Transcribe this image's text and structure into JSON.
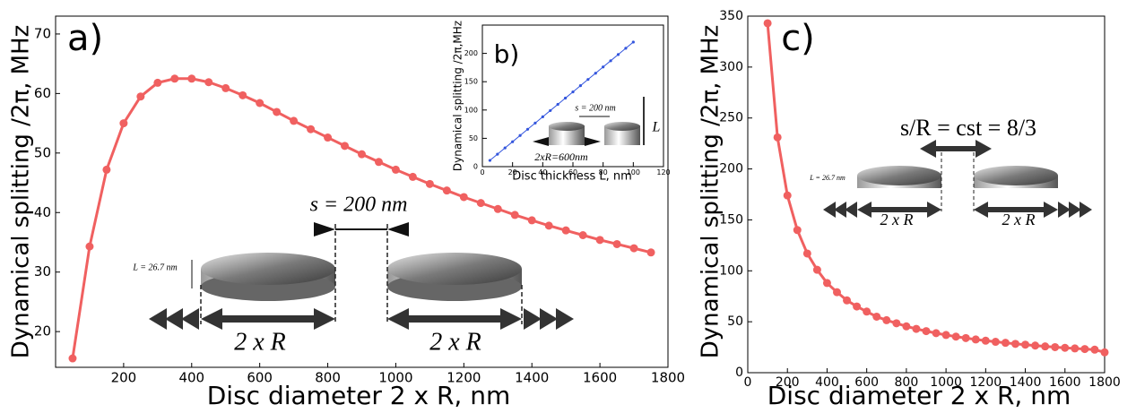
{
  "chart_data": [
    {
      "type": "line",
      "label": "a)",
      "xlabel": "Disc diameter 2 x R, nm",
      "ylabel": "Dynamical splitting /2π, MHz",
      "x": [
        50,
        100,
        150,
        200,
        250,
        300,
        350,
        400,
        450,
        500,
        550,
        600,
        650,
        700,
        750,
        800,
        850,
        900,
        950,
        1000,
        1050,
        1100,
        1150,
        1200,
        1250,
        1300,
        1350,
        1400,
        1450,
        1500,
        1550,
        1600,
        1650,
        1700,
        1750
      ],
      "values": [
        15.5,
        34.3,
        47.2,
        55,
        59.5,
        61.8,
        62.5,
        62.5,
        61.9,
        60.9,
        59.7,
        58.4,
        56.9,
        55.4,
        54,
        52.6,
        51.2,
        49.8,
        48.5,
        47.2,
        46,
        44.8,
        43.7,
        42.6,
        41.6,
        40.6,
        39.6,
        38.7,
        37.8,
        37,
        36.2,
        35.4,
        34.7,
        34,
        33.3
      ],
      "color": "#f06060",
      "xlim": [
        0,
        1800
      ],
      "xticks": [
        200,
        400,
        600,
        800,
        1000,
        1200,
        1400,
        1600,
        1800
      ],
      "ylim": [
        14,
        73
      ],
      "yticks": [
        20,
        30,
        40,
        50,
        60,
        70
      ],
      "annotations": [
        "s = 200 nm",
        "L = 26.7 nm",
        "2 x R",
        "2 x R"
      ]
    },
    {
      "type": "line",
      "label": "b)",
      "xlabel": "Disc thickness L, nm",
      "ylabel": "Dynamical splitting /2π,MHz",
      "x": [
        5,
        10,
        15,
        20,
        25,
        30,
        35,
        40,
        45,
        50,
        55,
        60,
        65,
        70,
        75,
        80,
        85,
        90,
        95,
        100
      ],
      "values": [
        11,
        22,
        33,
        44,
        55,
        66,
        77,
        88,
        99,
        110,
        121,
        132,
        143,
        154,
        165,
        176,
        187,
        198,
        209,
        220
      ],
      "color": "#3355dd",
      "xlim": [
        0,
        120
      ],
      "xticks": [
        0,
        20,
        40,
        60,
        80,
        100,
        120
      ],
      "ylim": [
        0,
        250
      ],
      "yticks": [
        0,
        50,
        100,
        150,
        200
      ],
      "annotations": [
        "s = 200 nm",
        "2xR=600nm",
        "L"
      ]
    },
    {
      "type": "line",
      "label": "c)",
      "xlabel": "Disc diameter 2 x R, nm",
      "ylabel": "Dynamical splitting /2π, MHz",
      "x": [
        100,
        150,
        200,
        250,
        300,
        350,
        400,
        450,
        500,
        550,
        600,
        650,
        700,
        750,
        800,
        850,
        900,
        950,
        1000,
        1050,
        1100,
        1150,
        1200,
        1250,
        1300,
        1350,
        1400,
        1450,
        1500,
        1550,
        1600,
        1650,
        1700,
        1750,
        1800
      ],
      "values": [
        343,
        231,
        174,
        140,
        117,
        101,
        88,
        79,
        71,
        65,
        60,
        55,
        51.5,
        48.5,
        45.5,
        43,
        40.8,
        38.8,
        37,
        35.4,
        34,
        32.6,
        31.4,
        30.3,
        29.3,
        28.3,
        27.5,
        26.6,
        25.8,
        25.1,
        24.4,
        23.8,
        23.2,
        22.6,
        20
      ],
      "color": "#f06060",
      "xlim": [
        0,
        1800
      ],
      "xticks": [
        0,
        200,
        400,
        600,
        800,
        1000,
        1200,
        1400,
        1600,
        1800
      ],
      "ylim": [
        0,
        350
      ],
      "yticks": [
        0,
        50,
        100,
        150,
        200,
        250,
        300,
        350
      ],
      "annotations": [
        "s/R = cst = 8/3",
        "L = 26.7 nm",
        "2 x R",
        "2 x R"
      ]
    }
  ]
}
